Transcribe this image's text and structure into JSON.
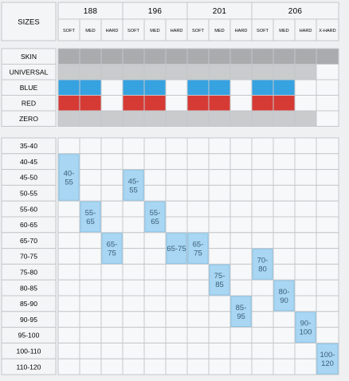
{
  "table_title": "SIZES",
  "sizes": [
    {
      "label": "188",
      "hardness": [
        "SOFT",
        "MED",
        "HARD"
      ]
    },
    {
      "label": "196",
      "hardness": [
        "SOFT",
        "MED",
        "HARD"
      ]
    },
    {
      "label": "201",
      "hardness": [
        "SOFT",
        "MED",
        "HARD"
      ]
    },
    {
      "label": "206",
      "hardness": [
        "SOFT",
        "MED",
        "HARD",
        "X-HARD"
      ]
    }
  ],
  "variants": [
    {
      "label": "SKIN",
      "color": "#a9abad",
      "columns": [
        0,
        1,
        2,
        3,
        4,
        5,
        6,
        7,
        8,
        9,
        10,
        11,
        12
      ]
    },
    {
      "label": "UNIVERSAL",
      "color": "#c9cbcd",
      "columns": [
        0,
        1,
        2,
        3,
        4,
        5,
        6,
        7,
        8,
        9,
        10,
        11
      ]
    },
    {
      "label": "BLUE",
      "color": "#36a2e0",
      "columns": [
        0,
        1,
        3,
        4,
        6,
        7,
        9,
        10
      ]
    },
    {
      "label": "RED",
      "color": "#d63a35",
      "columns": [
        0,
        1,
        3,
        4,
        6,
        7,
        9,
        10
      ]
    },
    {
      "label": "ZERO",
      "color": "#c9cbcd",
      "columns": [
        0,
        1,
        2,
        3,
        4,
        5,
        6,
        7,
        8,
        9,
        10,
        11
      ]
    }
  ],
  "weight_ranges": [
    "35-40",
    "40-45",
    "45-50",
    "50-55",
    "55-60",
    "60-65",
    "65-70",
    "70-75",
    "75-80",
    "80-85",
    "85-90",
    "90-95",
    "95-100",
    "100-110",
    "110-120"
  ],
  "recommendations": [
    {
      "column": 0,
      "rows": [
        1,
        3
      ],
      "label": [
        "40-",
        "55"
      ]
    },
    {
      "column": 3,
      "rows": [
        2,
        3
      ],
      "label": [
        "45-",
        "55"
      ]
    },
    {
      "column": 1,
      "rows": [
        4,
        5
      ],
      "label": [
        "55-",
        "65"
      ]
    },
    {
      "column": 4,
      "rows": [
        4,
        5
      ],
      "label": [
        "55-",
        "65"
      ]
    },
    {
      "column": 2,
      "rows": [
        6,
        7
      ],
      "label": [
        "65-",
        "75"
      ]
    },
    {
      "column": 5,
      "rows": [
        6,
        7
      ],
      "label": [
        "65-75"
      ]
    },
    {
      "column": 6,
      "rows": [
        6,
        7
      ],
      "label": [
        "65-",
        "75"
      ]
    },
    {
      "column": 9,
      "rows": [
        7,
        8
      ],
      "label": [
        "70-",
        "80"
      ]
    },
    {
      "column": 7,
      "rows": [
        8,
        9
      ],
      "label": [
        "75-",
        "85"
      ]
    },
    {
      "column": 10,
      "rows": [
        9,
        10
      ],
      "label": [
        "80-",
        "90"
      ]
    },
    {
      "column": 8,
      "rows": [
        10,
        11
      ],
      "label": [
        "85-",
        "95"
      ]
    },
    {
      "column": 11,
      "rows": [
        11,
        12
      ],
      "label": [
        "90-",
        "100"
      ]
    },
    {
      "column": 12,
      "rows": [
        13,
        14
      ],
      "label": [
        "100-",
        "120"
      ]
    }
  ],
  "colors": {
    "highlight": "#a9d6f2",
    "grid": "#c4c7ca",
    "background": "#eef0f2"
  }
}
